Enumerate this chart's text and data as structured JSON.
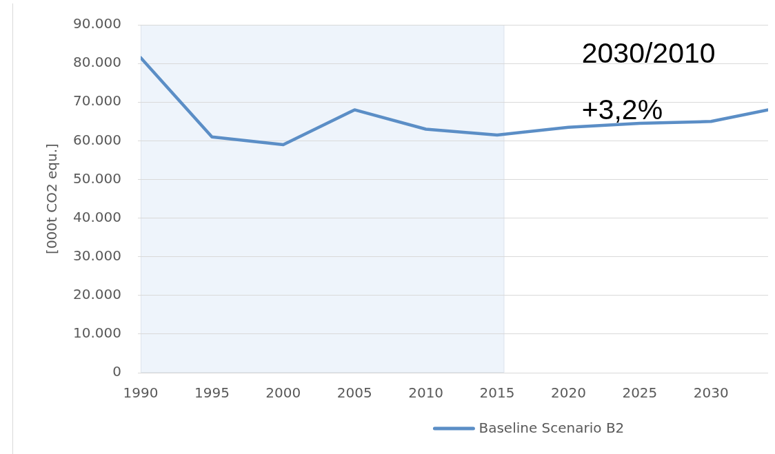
{
  "chart_data": {
    "type": "line",
    "ylabel": "[000t CO2 equ.]",
    "annotations": [
      "2030/2010",
      "+3,2%"
    ],
    "x": [
      1990,
      1995,
      2000,
      2005,
      2010,
      2015,
      2020,
      2025,
      2030,
      2034
    ],
    "series": [
      {
        "name": "Baseline Scenario B2",
        "color": "#5b8ec6",
        "values": [
          81500,
          61000,
          59000,
          68000,
          63000,
          61500,
          63500,
          64500,
          65000,
          68000
        ]
      }
    ],
    "xlim": [
      1990,
      2034
    ],
    "xticks": [
      1990,
      1995,
      2000,
      2005,
      2010,
      2015,
      2020,
      2025,
      2030
    ],
    "ylim": [
      0,
      90000
    ],
    "yticks": [
      0,
      {
        "value": 10000,
        "label": "10.000"
      },
      {
        "value": 20000,
        "label": "20.000"
      },
      {
        "value": 30000,
        "label": "30.000"
      },
      {
        "value": 40000,
        "label": "40.000"
      },
      {
        "value": 50000,
        "label": "50.000"
      },
      {
        "value": 60000,
        "label": "60.000"
      },
      {
        "value": 70000,
        "label": "70.000"
      },
      {
        "value": 80000,
        "label": "80.000"
      },
      {
        "value": 90000,
        "label": "90.000"
      }
    ],
    "grid": "y",
    "legend": "bottom",
    "bands": [
      {
        "axis": "x",
        "from": 1990,
        "to": 2015.5,
        "color": "#eef4fb"
      }
    ]
  }
}
